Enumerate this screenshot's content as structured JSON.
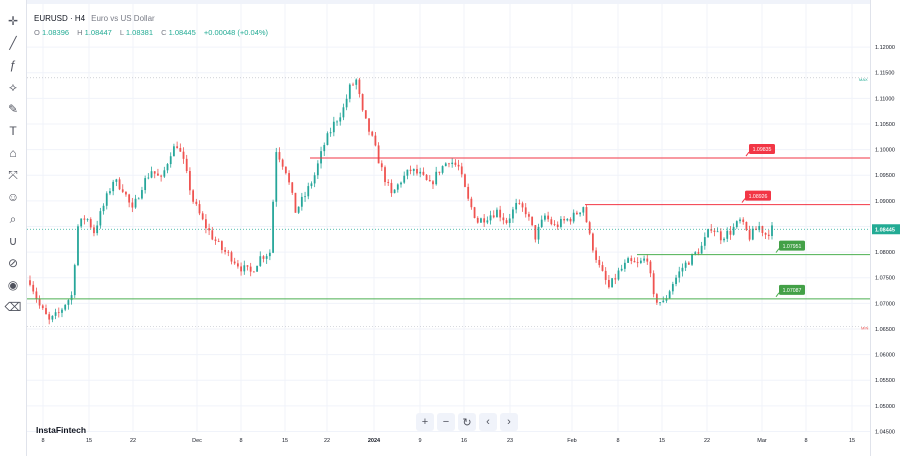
{
  "header": {
    "symbol": "EURUSD · H4",
    "description": "Euro vs US Dollar",
    "ohlc": {
      "o_label": "O",
      "o": "1.08396",
      "h_label": "H",
      "h": "1.08447",
      "l_label": "L",
      "l": "1.08381",
      "c_label": "C",
      "c": "1.08445",
      "change": "+0.00048 (+0.04%)"
    }
  },
  "brand": "InstaFintech",
  "toolbar": [
    "cursor-icon",
    "crosshair-icon",
    "trend-line-icon",
    "fib-icon",
    "brush-icon",
    "text-icon",
    "pattern-icon",
    "measure-icon",
    "smile-icon",
    "zoom-icon",
    "magnet-icon",
    "lock-icon",
    "eye-icon",
    "trash-icon"
  ],
  "nav_buttons": [
    "+",
    "−",
    "↻",
    "‹",
    "›"
  ],
  "colors": {
    "up": "#26a69a",
    "down": "#ef5350",
    "resistance": "#f23645",
    "support": "#4caf50",
    "support_label_bg": "#43a047",
    "current_price": "#22ab94",
    "grid": "#f0f3fa"
  },
  "chart_data": {
    "type": "candlestick",
    "symbol": "EURUSD",
    "timeframe": "H4",
    "ylim": [
      1.0445,
      1.1245
    ],
    "y_ticks": [
      "1.12000",
      "1.11500",
      "1.11000",
      "1.10500",
      "1.10000",
      "1.09500",
      "1.09000",
      "1.08500",
      "1.08000",
      "1.07500",
      "1.07000",
      "1.06500",
      "1.06000",
      "1.05500",
      "1.05000",
      "1.04500"
    ],
    "x_ticks": [
      "8",
      "15",
      "22",
      "Dec",
      "8",
      "15",
      "22",
      "2024",
      "9",
      "16",
      "23",
      "Feb",
      "8",
      "15",
      "22",
      "Mar",
      "8",
      "15"
    ],
    "current_price": "1.08445",
    "levels": [
      {
        "kind": "resistance",
        "price": 1.09835,
        "label": "1.09835"
      },
      {
        "kind": "resistance",
        "price": 1.08926,
        "label": "1.08926"
      },
      {
        "kind": "support",
        "price": 1.07951,
        "label": "1.07951"
      },
      {
        "kind": "support",
        "price": 1.07087,
        "label": "1.07087"
      }
    ],
    "max_marker_label": "MAX",
    "min_marker_label": "MIN",
    "close_path": [
      [
        0,
        1.0745
      ],
      [
        6,
        1.0695
      ],
      [
        12,
        1.0665
      ],
      [
        18,
        1.068
      ],
      [
        22,
        1.07
      ],
      [
        26,
        1.0715
      ],
      [
        30,
        1.085
      ],
      [
        35,
        1.087
      ],
      [
        40,
        1.084
      ],
      [
        46,
        1.089
      ],
      [
        52,
        1.094
      ],
      [
        58,
        1.0925
      ],
      [
        64,
        1.088
      ],
      [
        70,
        1.093
      ],
      [
        76,
        1.096
      ],
      [
        82,
        1.094
      ],
      [
        88,
        1.0995
      ],
      [
        92,
        1.101
      ],
      [
        96,
        1.0975
      ],
      [
        102,
        1.09
      ],
      [
        108,
        1.086
      ],
      [
        114,
        1.083
      ],
      [
        120,
        1.0805
      ],
      [
        126,
        1.079
      ],
      [
        132,
        1.077
      ],
      [
        138,
        1.076
      ],
      [
        144,
        1.079
      ],
      [
        150,
        1.08
      ],
      [
        154,
        1.1
      ],
      [
        160,
        1.096
      ],
      [
        166,
        1.088
      ],
      [
        172,
        1.091
      ],
      [
        178,
        1.095
      ],
      [
        184,
        1.101
      ],
      [
        190,
        1.105
      ],
      [
        196,
        1.108
      ],
      [
        200,
        1.112
      ],
      [
        204,
        1.1135
      ],
      [
        208,
        1.107
      ],
      [
        214,
        1.102
      ],
      [
        220,
        1.096
      ],
      [
        226,
        1.091
      ],
      [
        232,
        1.094
      ],
      [
        238,
        1.096
      ],
      [
        244,
        1.095
      ],
      [
        250,
        1.093
      ],
      [
        256,
        1.096
      ],
      [
        262,
        1.098
      ],
      [
        268,
        1.0965
      ],
      [
        274,
        1.09
      ],
      [
        280,
        1.086
      ],
      [
        286,
        1.087
      ],
      [
        292,
        1.088
      ],
      [
        298,
        1.086
      ],
      [
        304,
        1.089
      ],
      [
        310,
        1.088
      ],
      [
        316,
        1.083
      ],
      [
        322,
        1.087
      ],
      [
        328,
        1.085
      ],
      [
        334,
        1.086
      ],
      [
        340,
        1.087
      ],
      [
        346,
        1.089
      ],
      [
        350,
        1.083
      ],
      [
        356,
        1.077
      ],
      [
        362,
        1.073
      ],
      [
        368,
        1.076
      ],
      [
        374,
        1.078
      ],
      [
        380,
        1.0775
      ],
      [
        386,
        1.079
      ],
      [
        390,
        1.071
      ],
      [
        396,
        1.07
      ],
      [
        402,
        1.074
      ],
      [
        408,
        1.077
      ],
      [
        414,
        1.079
      ],
      [
        420,
        1.081
      ],
      [
        426,
        1.085
      ],
      [
        432,
        1.083
      ],
      [
        438,
        1.084
      ],
      [
        444,
        1.086
      ],
      [
        450,
        1.083
      ],
      [
        456,
        1.085
      ],
      [
        460,
        1.0835
      ],
      [
        464,
        1.0845
      ]
    ],
    "xlabel": "",
    "ylabel": ""
  }
}
